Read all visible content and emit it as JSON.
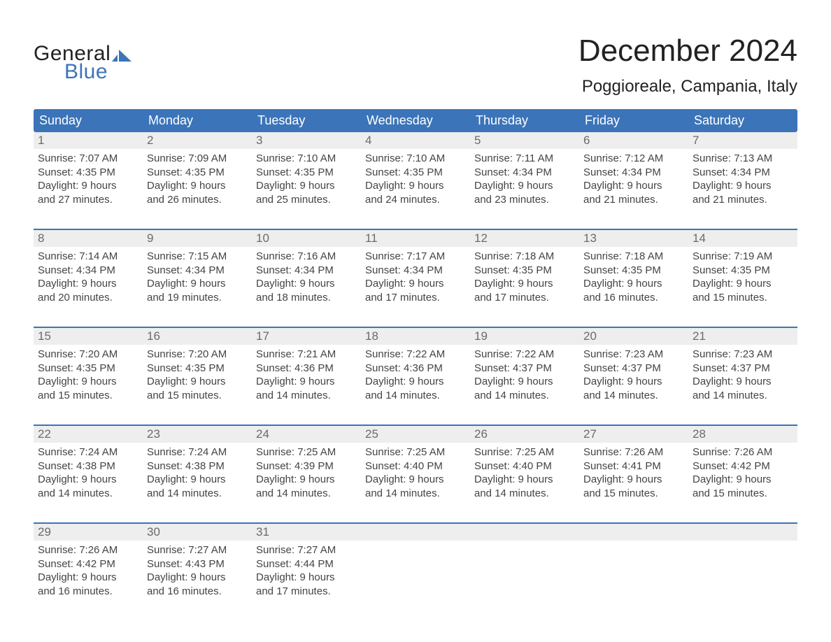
{
  "logo": {
    "text1": "General",
    "text2": "Blue",
    "tri_color": "#3b74b9"
  },
  "header": {
    "month_title": "December 2024",
    "location": "Poggioreale, Campania, Italy"
  },
  "colors": {
    "header_bg": "#3b74b9",
    "header_text": "#ffffff",
    "daynum_bg": "#eeeeee",
    "daynum_text": "#6b6b6b",
    "body_text": "#444444",
    "week_border": "#3b74b9",
    "page_bg": "#ffffff"
  },
  "day_labels": [
    "Sunday",
    "Monday",
    "Tuesday",
    "Wednesday",
    "Thursday",
    "Friday",
    "Saturday"
  ],
  "weeks": [
    [
      {
        "n": "1",
        "sr": "7:07 AM",
        "ss": "4:35 PM",
        "dh": "9",
        "dm": "27"
      },
      {
        "n": "2",
        "sr": "7:09 AM",
        "ss": "4:35 PM",
        "dh": "9",
        "dm": "26"
      },
      {
        "n": "3",
        "sr": "7:10 AM",
        "ss": "4:35 PM",
        "dh": "9",
        "dm": "25"
      },
      {
        "n": "4",
        "sr": "7:10 AM",
        "ss": "4:35 PM",
        "dh": "9",
        "dm": "24"
      },
      {
        "n": "5",
        "sr": "7:11 AM",
        "ss": "4:34 PM",
        "dh": "9",
        "dm": "23"
      },
      {
        "n": "6",
        "sr": "7:12 AM",
        "ss": "4:34 PM",
        "dh": "9",
        "dm": "21"
      },
      {
        "n": "7",
        "sr": "7:13 AM",
        "ss": "4:34 PM",
        "dh": "9",
        "dm": "21"
      }
    ],
    [
      {
        "n": "8",
        "sr": "7:14 AM",
        "ss": "4:34 PM",
        "dh": "9",
        "dm": "20"
      },
      {
        "n": "9",
        "sr": "7:15 AM",
        "ss": "4:34 PM",
        "dh": "9",
        "dm": "19"
      },
      {
        "n": "10",
        "sr": "7:16 AM",
        "ss": "4:34 PM",
        "dh": "9",
        "dm": "18"
      },
      {
        "n": "11",
        "sr": "7:17 AM",
        "ss": "4:34 PM",
        "dh": "9",
        "dm": "17"
      },
      {
        "n": "12",
        "sr": "7:18 AM",
        "ss": "4:35 PM",
        "dh": "9",
        "dm": "17"
      },
      {
        "n": "13",
        "sr": "7:18 AM",
        "ss": "4:35 PM",
        "dh": "9",
        "dm": "16"
      },
      {
        "n": "14",
        "sr": "7:19 AM",
        "ss": "4:35 PM",
        "dh": "9",
        "dm": "15"
      }
    ],
    [
      {
        "n": "15",
        "sr": "7:20 AM",
        "ss": "4:35 PM",
        "dh": "9",
        "dm": "15"
      },
      {
        "n": "16",
        "sr": "7:20 AM",
        "ss": "4:35 PM",
        "dh": "9",
        "dm": "15"
      },
      {
        "n": "17",
        "sr": "7:21 AM",
        "ss": "4:36 PM",
        "dh": "9",
        "dm": "14"
      },
      {
        "n": "18",
        "sr": "7:22 AM",
        "ss": "4:36 PM",
        "dh": "9",
        "dm": "14"
      },
      {
        "n": "19",
        "sr": "7:22 AM",
        "ss": "4:37 PM",
        "dh": "9",
        "dm": "14"
      },
      {
        "n": "20",
        "sr": "7:23 AM",
        "ss": "4:37 PM",
        "dh": "9",
        "dm": "14"
      },
      {
        "n": "21",
        "sr": "7:23 AM",
        "ss": "4:37 PM",
        "dh": "9",
        "dm": "14"
      }
    ],
    [
      {
        "n": "22",
        "sr": "7:24 AM",
        "ss": "4:38 PM",
        "dh": "9",
        "dm": "14"
      },
      {
        "n": "23",
        "sr": "7:24 AM",
        "ss": "4:38 PM",
        "dh": "9",
        "dm": "14"
      },
      {
        "n": "24",
        "sr": "7:25 AM",
        "ss": "4:39 PM",
        "dh": "9",
        "dm": "14"
      },
      {
        "n": "25",
        "sr": "7:25 AM",
        "ss": "4:40 PM",
        "dh": "9",
        "dm": "14"
      },
      {
        "n": "26",
        "sr": "7:25 AM",
        "ss": "4:40 PM",
        "dh": "9",
        "dm": "14"
      },
      {
        "n": "27",
        "sr": "7:26 AM",
        "ss": "4:41 PM",
        "dh": "9",
        "dm": "15"
      },
      {
        "n": "28",
        "sr": "7:26 AM",
        "ss": "4:42 PM",
        "dh": "9",
        "dm": "15"
      }
    ],
    [
      {
        "n": "29",
        "sr": "7:26 AM",
        "ss": "4:42 PM",
        "dh": "9",
        "dm": "16"
      },
      {
        "n": "30",
        "sr": "7:27 AM",
        "ss": "4:43 PM",
        "dh": "9",
        "dm": "16"
      },
      {
        "n": "31",
        "sr": "7:27 AM",
        "ss": "4:44 PM",
        "dh": "9",
        "dm": "17"
      },
      null,
      null,
      null,
      null
    ]
  ],
  "labels": {
    "sunrise_prefix": "Sunrise: ",
    "sunset_prefix": "Sunset: ",
    "daylight_prefix": "Daylight: ",
    "hours_word": " hours",
    "and_word": "and ",
    "minutes_word": " minutes."
  }
}
